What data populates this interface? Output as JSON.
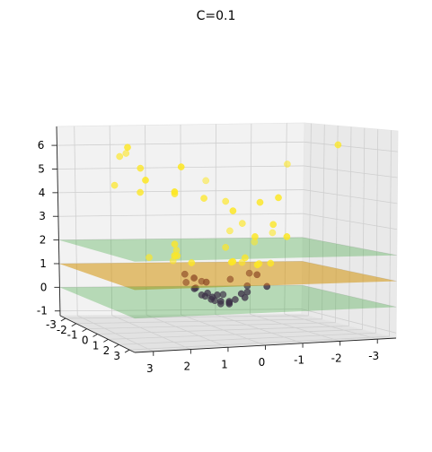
{
  "chart_data": {
    "type": "scatter",
    "projection": "3d",
    "title": "C=0.1",
    "axes": {
      "x": {
        "ticks": [
          "-3",
          "-2",
          "-1",
          "0",
          "1",
          "2",
          "3"
        ],
        "range": [
          -3.5,
          3.5
        ]
      },
      "y": {
        "ticks": [
          "-3",
          "-2",
          "-1",
          "0",
          "1",
          "2",
          "3"
        ],
        "range": [
          -3.5,
          3.5
        ]
      },
      "z": {
        "ticks": [
          "-1",
          "0",
          "1",
          "2",
          "3",
          "4",
          "5",
          "6"
        ],
        "range": [
          -1.2,
          6.8
        ]
      }
    },
    "grid": true,
    "planes": [
      {
        "z": 2.0,
        "color": "#2ca02c",
        "opacity": 0.3
      },
      {
        "z": 1.0,
        "color": "#d4940a",
        "opacity": 0.55
      },
      {
        "z": 0.0,
        "color": "#2ca02c",
        "opacity": 0.3
      }
    ],
    "series": [
      {
        "color": "#fde725",
        "points": [
          [
            3.0,
            1.2,
            6.0
          ],
          [
            2.2,
            -1.5,
            5.7
          ],
          [
            2.6,
            -0.8,
            5.6
          ],
          [
            -3.0,
            0.4,
            6.1
          ],
          [
            -2.4,
            -1.8,
            5.2
          ],
          [
            2.5,
            0.7,
            5.2
          ],
          [
            2.7,
            1.8,
            4.8
          ],
          [
            2.9,
            -0.3,
            4.5
          ],
          [
            1.8,
            2.0,
            5.3
          ],
          [
            -0.4,
            -2.6,
            4.5
          ],
          [
            2.1,
            2.4,
            4.4
          ],
          [
            2.6,
            1.0,
            4.3
          ],
          [
            1.5,
            0.5,
            4.2
          ],
          [
            -1.0,
            1.5,
            4.1
          ],
          [
            0.6,
            0.2,
            4.0
          ],
          [
            -0.3,
            -0.7,
            3.8
          ],
          [
            -0.6,
            1.2,
            3.9
          ],
          [
            0.2,
            1.4,
            3.6
          ],
          [
            -1.1,
            0.8,
            3.0
          ],
          [
            -0.8,
            -0.8,
            2.9
          ],
          [
            -1.2,
            1.6,
            2.6
          ],
          [
            -0.4,
            1.4,
            2.6
          ],
          [
            -0.8,
            -1.8,
            2.5
          ],
          [
            -2.0,
            -1.8,
            2.4
          ],
          [
            1.6,
            0.8,
            2.3
          ],
          [
            -1.6,
            -2.1,
            2.0
          ],
          [
            1.7,
            1.1,
            1.9
          ],
          [
            1.1,
            -0.6,
            1.9
          ],
          [
            -0.2,
            -0.4,
            2.0
          ],
          [
            0.4,
            1.9,
            1.7
          ],
          [
            -0.4,
            0.6,
            1.7
          ],
          [
            -1.0,
            0.9,
            1.5
          ],
          [
            1.8,
            -0.8,
            1.6
          ],
          [
            -0.5,
            1.3,
            1.5
          ],
          [
            -1.2,
            -0.6,
            1.3
          ],
          [
            -0.9,
            -1.1,
            1.3
          ],
          [
            1.2,
            1.0,
            1.6
          ],
          [
            1.0,
            -1.2,
            1.4
          ],
          [
            0.3,
            1.7,
            1.7
          ],
          [
            1.4,
            0.4,
            1.8
          ]
        ]
      },
      {
        "color": "#440154",
        "points": [
          [
            1.0,
            -0.2,
            1.0
          ],
          [
            -0.8,
            0.4,
            1.0
          ],
          [
            0.7,
            0.7,
            0.8
          ],
          [
            0.3,
            -0.9,
            0.6
          ],
          [
            -0.4,
            -0.6,
            0.7
          ],
          [
            0.9,
            0.3,
            0.5
          ],
          [
            -0.7,
            -0.1,
            0.5
          ],
          [
            0.6,
            -0.5,
            0.4
          ],
          [
            0.5,
            0.2,
            0.3
          ],
          [
            -0.3,
            0.6,
            0.3
          ],
          [
            -0.9,
            0.9,
            0.6
          ],
          [
            0.8,
            -0.7,
            0.6
          ],
          [
            0.2,
            0.1,
            0.2
          ],
          [
            -0.2,
            -0.6,
            0.1
          ],
          [
            0.5,
            0.6,
            0.2
          ],
          [
            -0.5,
            0.3,
            0.1
          ],
          [
            0.4,
            -0.3,
            0.1
          ],
          [
            -0.6,
            0.2,
            0.3
          ],
          [
            0.1,
            -0.4,
            -0.1
          ],
          [
            0.2,
            0.4,
            0.0
          ],
          [
            -0.1,
            0.2,
            -0.1
          ],
          [
            0.3,
            -0.1,
            0.0
          ],
          [
            -0.3,
            0.1,
            0.0
          ],
          [
            0.0,
            0.5,
            -0.1
          ],
          [
            0.0,
            -0.2,
            -0.2
          ],
          [
            -0.2,
            -0.1,
            -0.1
          ],
          [
            0.6,
            0.0,
            0.2
          ],
          [
            1.1,
            0.9,
            1.0
          ],
          [
            -1.0,
            -0.8,
            0.9
          ]
        ]
      }
    ]
  }
}
